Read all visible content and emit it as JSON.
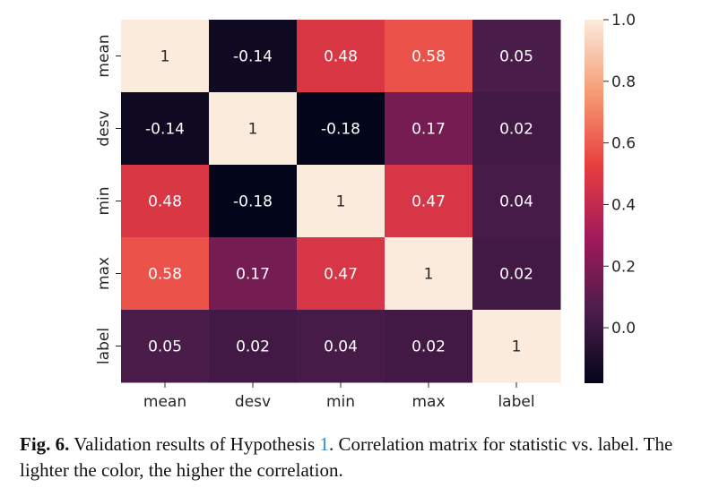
{
  "chart_data": {
    "type": "heatmap",
    "row_labels": [
      "mean",
      "desv",
      "min",
      "max",
      "label"
    ],
    "col_labels": [
      "mean",
      "desv",
      "min",
      "max",
      "label"
    ],
    "values": [
      [
        1,
        -0.14,
        0.48,
        0.58,
        0.05
      ],
      [
        -0.14,
        1,
        -0.18,
        0.17,
        0.02
      ],
      [
        0.48,
        -0.18,
        1,
        0.47,
        0.04
      ],
      [
        0.58,
        0.17,
        0.47,
        1,
        0.02
      ],
      [
        0.05,
        0.02,
        0.04,
        0.02,
        1
      ]
    ],
    "cell_labels": [
      [
        "1",
        "-0.14",
        "0.48",
        "0.58",
        "0.05"
      ],
      [
        "-0.14",
        "1",
        "-0.18",
        "0.17",
        "0.02"
      ],
      [
        "0.48",
        "-0.18",
        "1",
        "0.47",
        "0.04"
      ],
      [
        "0.58",
        "0.17",
        "0.47",
        "1",
        "0.02"
      ],
      [
        "0.05",
        "0.02",
        "0.04",
        "0.02",
        "1"
      ]
    ],
    "colorbar": {
      "vmin": -0.18,
      "vmax": 1.0,
      "ticks": [
        1.0,
        0.8,
        0.6,
        0.4,
        0.2,
        0.0
      ],
      "tick_labels": [
        "1.0",
        "0.8",
        "0.6",
        "0.4",
        "0.2",
        "0.0"
      ],
      "colormap": "rocket",
      "color_stops": [
        "#03051a",
        "#4c1d4b",
        "#a11a5b",
        "#e83f3f",
        "#f69c73",
        "#faebdd"
      ]
    },
    "grid": false,
    "legend": "colorbar-right"
  },
  "caption": {
    "label": "Fig. 6.",
    "text_before_ref": " Validation results of Hypothesis ",
    "ref": "1",
    "text_after_ref": ". Correlation matrix for statistic vs. label. The lighter the color, the higher the correlation."
  },
  "colors": {
    "text": "#262626",
    "caption_link": "#2a8fd6"
  }
}
